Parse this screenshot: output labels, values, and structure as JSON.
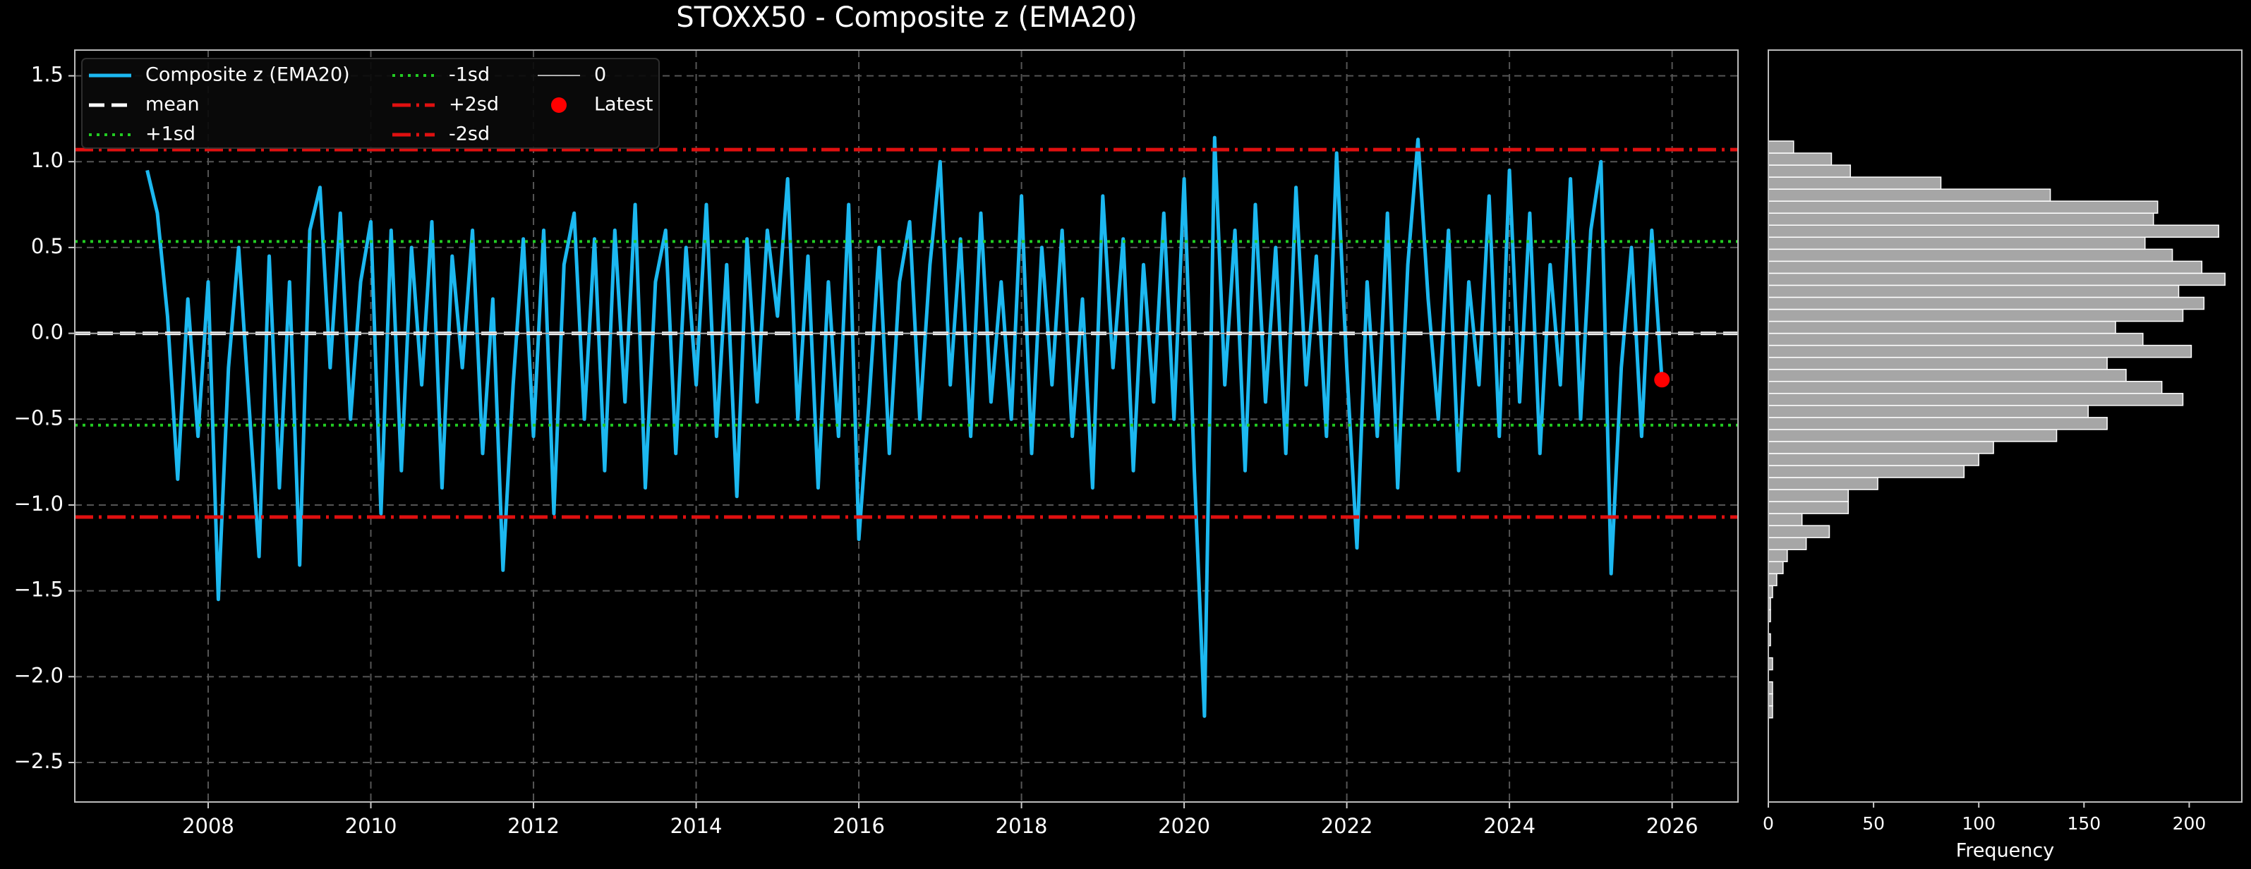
{
  "chart_data": [
    {
      "type": "line",
      "title": "STOXX50 - Composite z (EMA20)",
      "xlim": [
        2006.36,
        2026.81
      ],
      "xticks": [
        2008,
        2010,
        2012,
        2014,
        2016,
        2018,
        2020,
        2022,
        2024,
        2026
      ],
      "ylim": [
        -2.73,
        1.65
      ],
      "yticks": [
        {
          "value": -2.5,
          "label": "−2.5"
        },
        {
          "value": -2.0,
          "label": "−2.0"
        },
        {
          "value": -1.5,
          "label": "−1.5"
        },
        {
          "value": -1.0,
          "label": "−1.0"
        },
        {
          "value": -0.5,
          "label": "−0.5"
        },
        {
          "value": 0.0,
          "label": "0.0"
        },
        {
          "value": 0.5,
          "label": "0.5"
        },
        {
          "value": 1.0,
          "label": "1.0"
        },
        {
          "value": 1.5,
          "label": "1.5"
        }
      ],
      "grid": true,
      "legend": "upper left",
      "x": [
        2007.25,
        2007.375,
        2007.5,
        2007.625,
        2007.75,
        2007.875,
        2008,
        2008.125,
        2008.25,
        2008.375,
        2008.5,
        2008.625,
        2008.75,
        2008.875,
        2009,
        2009.125,
        2009.25,
        2009.375,
        2009.5,
        2009.625,
        2009.75,
        2009.875,
        2010,
        2010.125,
        2010.25,
        2010.375,
        2010.5,
        2010.625,
        2010.75,
        2010.875,
        2011,
        2011.125,
        2011.25,
        2011.375,
        2011.5,
        2011.625,
        2011.75,
        2011.875,
        2012,
        2012.125,
        2012.25,
        2012.375,
        2012.5,
        2012.625,
        2012.75,
        2012.875,
        2013,
        2013.125,
        2013.25,
        2013.375,
        2013.5,
        2013.625,
        2013.75,
        2013.875,
        2014,
        2014.125,
        2014.25,
        2014.375,
        2014.5,
        2014.625,
        2014.75,
        2014.875,
        2015,
        2015.125,
        2015.25,
        2015.375,
        2015.5,
        2015.625,
        2015.75,
        2015.875,
        2016,
        2016.125,
        2016.25,
        2016.375,
        2016.5,
        2016.625,
        2016.75,
        2016.875,
        2017,
        2017.125,
        2017.25,
        2017.375,
        2017.5,
        2017.625,
        2017.75,
        2017.875,
        2018,
        2018.125,
        2018.25,
        2018.375,
        2018.5,
        2018.625,
        2018.75,
        2018.875,
        2019,
        2019.125,
        2019.25,
        2019.375,
        2019.5,
        2019.625,
        2019.75,
        2019.875,
        2020,
        2020.125,
        2020.25,
        2020.375,
        2020.5,
        2020.625,
        2020.75,
        2020.875,
        2021,
        2021.125,
        2021.25,
        2021.375,
        2021.5,
        2021.625,
        2021.75,
        2021.875,
        2022,
        2022.125,
        2022.25,
        2022.375,
        2022.5,
        2022.625,
        2022.75,
        2022.875,
        2023,
        2023.125,
        2023.25,
        2023.375,
        2023.5,
        2023.625,
        2023.75,
        2023.875,
        2024,
        2024.125,
        2024.25,
        2024.375,
        2024.5,
        2024.625,
        2024.75,
        2024.875,
        2025,
        2025.125,
        2025.25,
        2025.375,
        2025.5,
        2025.625,
        2025.75,
        2025.875
      ],
      "series": [
        {
          "name": "Composite z (EMA20)",
          "color": "#1cb8f0",
          "values": [
            0.95,
            0.7,
            0.1,
            -0.85,
            0.2,
            -0.6,
            0.3,
            -1.55,
            -0.2,
            0.5,
            -0.4,
            -1.3,
            0.45,
            -0.9,
            0.3,
            -1.35,
            0.6,
            0.85,
            -0.2,
            0.7,
            -0.5,
            0.3,
            0.65,
            -1.05,
            0.6,
            -0.8,
            0.5,
            -0.3,
            0.65,
            -0.9,
            0.45,
            -0.2,
            0.6,
            -0.7,
            0.2,
            -1.38,
            -0.3,
            0.55,
            -0.6,
            0.6,
            -1.05,
            0.4,
            0.7,
            -0.5,
            0.55,
            -0.8,
            0.6,
            -0.4,
            0.75,
            -0.9,
            0.3,
            0.6,
            -0.7,
            0.5,
            -0.3,
            0.75,
            -0.6,
            0.4,
            -0.95,
            0.55,
            -0.4,
            0.6,
            0.1,
            0.9,
            -0.5,
            0.45,
            -0.9,
            0.3,
            -0.6,
            0.75,
            -1.2,
            -0.4,
            0.5,
            -0.7,
            0.3,
            0.65,
            -0.5,
            0.4,
            1.0,
            -0.3,
            0.55,
            -0.6,
            0.7,
            -0.4,
            0.3,
            -0.5,
            0.8,
            -0.7,
            0.5,
            -0.3,
            0.6,
            -0.6,
            0.2,
            -0.9,
            0.8,
            -0.2,
            0.55,
            -0.8,
            0.4,
            -0.4,
            0.7,
            -0.5,
            0.9,
            -0.8,
            -2.23,
            1.14,
            -0.3,
            0.6,
            -0.8,
            0.75,
            -0.4,
            0.5,
            -0.7,
            0.85,
            -0.3,
            0.45,
            -0.6,
            1.05,
            -0.2,
            -1.25,
            0.3,
            -0.6,
            0.7,
            -0.9,
            0.4,
            1.13,
            0.2,
            -0.5,
            0.6,
            -0.8,
            0.3,
            -0.3,
            0.8,
            -0.6,
            0.95,
            -0.4,
            0.7,
            -0.7,
            0.4,
            -0.3,
            0.9,
            -0.5,
            0.6,
            1.0,
            -1.4,
            -0.2,
            0.5,
            -0.6,
            0.6,
            -0.27
          ]
        }
      ],
      "hlines": [
        {
          "name": "mean",
          "value": 0,
          "color": "#ffffff",
          "style": "dashed"
        },
        {
          "name": "+1sd",
          "value": 0.535,
          "color": "#22cc22",
          "style": "dotted"
        },
        {
          "name": "-1sd",
          "value": -0.535,
          "color": "#22cc22",
          "style": "dotted"
        },
        {
          "name": "+2sd",
          "value": 1.07,
          "color": "#e01010",
          "style": "dashdot"
        },
        {
          "name": "-2sd",
          "value": -1.07,
          "color": "#e01010",
          "style": "dashdot"
        },
        {
          "name": "0",
          "value": 0,
          "color": "#b0b0b0",
          "style": "solid"
        }
      ],
      "points": [
        {
          "name": "Latest",
          "x": 2025.875,
          "y": -0.27,
          "color": "#ff0000"
        }
      ]
    },
    {
      "type": "histogram",
      "orientation": "horizontal",
      "xlabel": "Frequency",
      "xlim": [
        0,
        225
      ],
      "xticks": [
        0,
        50,
        100,
        150,
        200
      ],
      "ylim": [
        -2.73,
        1.65
      ],
      "color": "#a6a6a6",
      "bins": [
        -2.24,
        -2.17,
        -2.1,
        -2.03,
        -1.96,
        -1.89,
        -1.82,
        -1.75,
        -1.68,
        -1.61,
        -1.54,
        -1.47,
        -1.4,
        -1.33,
        -1.26,
        -1.19,
        -1.12,
        -1.05,
        -0.98,
        -0.91,
        -0.84,
        -0.77,
        -0.7,
        -0.63,
        -0.56,
        -0.49,
        -0.42,
        -0.35,
        -0.28,
        -0.21,
        -0.14,
        -0.07,
        0,
        0.07,
        0.14,
        0.21,
        0.28,
        0.35,
        0.42,
        0.49,
        0.56,
        0.63,
        0.7,
        0.77,
        0.84,
        0.91,
        0.98,
        1.05,
        1.12
      ],
      "values": [
        2,
        2,
        2,
        0,
        2,
        0,
        1,
        0,
        1,
        1,
        2,
        4,
        7,
        9,
        18,
        29,
        16,
        38,
        38,
        52,
        93,
        100,
        107,
        137,
        161,
        152,
        197,
        187,
        170,
        161,
        201,
        178,
        165,
        197,
        207,
        195,
        217,
        206,
        192,
        179,
        214,
        183,
        185,
        134,
        82,
        39,
        30,
        12
      ]
    }
  ]
}
